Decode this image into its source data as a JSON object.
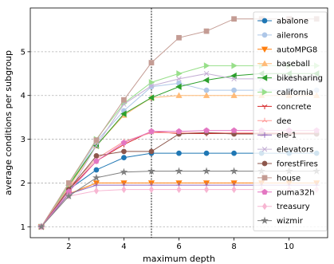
{
  "chart_data": {
    "type": "line",
    "title": "",
    "xlabel": "maximum depth",
    "ylabel": "average conditions per subgroup",
    "xlim": [
      0.6,
      11.4
    ],
    "ylim": [
      0.75,
      6.0
    ],
    "xticks": [
      2,
      4,
      6,
      8,
      10
    ],
    "yticks": [
      1,
      2,
      3,
      4,
      5
    ],
    "grid": "horizontal-dashed",
    "vline": 5,
    "legend_placement": "right",
    "x": [
      1,
      2,
      3,
      4,
      5,
      6,
      7,
      8,
      9,
      10,
      11
    ],
    "series": [
      {
        "name": "abalone",
        "color": "#1f77b4",
        "marker": "circle",
        "values": [
          1,
          1.85,
          2.3,
          2.58,
          2.68,
          2.68,
          2.68,
          2.68,
          2.68,
          2.68,
          2.68
        ]
      },
      {
        "name": "ailerons",
        "color": "#aec7e8",
        "marker": "circle",
        "values": [
          1,
          1.9,
          2.95,
          3.65,
          4.2,
          4.28,
          4.12,
          4.12,
          4.12,
          4.12,
          4.12
        ]
      },
      {
        "name": "autoMPG8",
        "color": "#ff7f0e",
        "marker": "triangle-down",
        "values": [
          1,
          1.75,
          2.0,
          2.0,
          2.0,
          2.0,
          2.0,
          2.0,
          2.0,
          2.0,
          2.0
        ]
      },
      {
        "name": "baseball",
        "color": "#ffbb78",
        "marker": "triangle-up",
        "values": [
          1,
          1.9,
          2.85,
          3.55,
          3.95,
          4.0,
          4.0,
          4.0,
          4.0,
          4.0,
          4.0
        ]
      },
      {
        "name": "bikesharing",
        "color": "#2ca02c",
        "marker": "triangle-left",
        "values": [
          1,
          1.95,
          2.85,
          3.58,
          3.95,
          4.2,
          4.35,
          4.45,
          4.5,
          4.5,
          4.5
        ]
      },
      {
        "name": "california",
        "color": "#98df8a",
        "marker": "triangle-right",
        "values": [
          1,
          1.95,
          3.0,
          3.82,
          4.3,
          4.5,
          4.68,
          4.68,
          4.68,
          4.68,
          4.68
        ]
      },
      {
        "name": "concrete",
        "color": "#d62728",
        "marker": "tri-down",
        "values": [
          1,
          1.85,
          2.5,
          2.88,
          3.18,
          3.13,
          3.13,
          3.13,
          3.13,
          3.13,
          3.13
        ]
      },
      {
        "name": "dee",
        "color": "#ff9896",
        "marker": "tri-up",
        "values": [
          1,
          1.9,
          2.55,
          2.95,
          3.15,
          3.15,
          3.15,
          3.15,
          3.15,
          3.15,
          3.15
        ]
      },
      {
        "name": "ele-1",
        "color": "#9467bd",
        "marker": "plus",
        "values": [
          1,
          1.75,
          1.95,
          1.95,
          1.95,
          1.95,
          1.95,
          1.95,
          1.95,
          1.95,
          1.95
        ]
      },
      {
        "name": "elevators",
        "color": "#c5b0d5",
        "marker": "x",
        "values": [
          1,
          1.8,
          2.85,
          3.8,
          4.22,
          4.38,
          4.5,
          4.38,
          4.38,
          4.38,
          4.38
        ]
      },
      {
        "name": "forestFires",
        "color": "#8c564b",
        "marker": "circle",
        "values": [
          1,
          1.85,
          2.62,
          2.72,
          2.72,
          3.12,
          3.15,
          3.12,
          3.12,
          3.12,
          3.12
        ]
      },
      {
        "name": "house",
        "color": "#c49c94",
        "marker": "square",
        "values": [
          1,
          2.0,
          2.98,
          3.9,
          4.75,
          5.32,
          5.47,
          5.75,
          5.75,
          5.75,
          5.75
        ]
      },
      {
        "name": "puma32h",
        "color": "#e377c2",
        "marker": "pentagon",
        "values": [
          1,
          1.8,
          2.5,
          2.92,
          3.18,
          3.18,
          3.2,
          3.2,
          3.2,
          3.2,
          3.2
        ]
      },
      {
        "name": "treasury",
        "color": "#f7b6d2",
        "marker": "diamond",
        "values": [
          1,
          1.7,
          1.82,
          1.85,
          1.85,
          1.85,
          1.85,
          1.85,
          1.85,
          1.85,
          1.85
        ]
      },
      {
        "name": "wizmir",
        "color": "#7f7f7f",
        "marker": "star",
        "values": [
          1,
          1.7,
          2.12,
          2.25,
          2.27,
          2.27,
          2.27,
          2.27,
          2.27,
          2.27,
          2.27
        ]
      }
    ]
  }
}
